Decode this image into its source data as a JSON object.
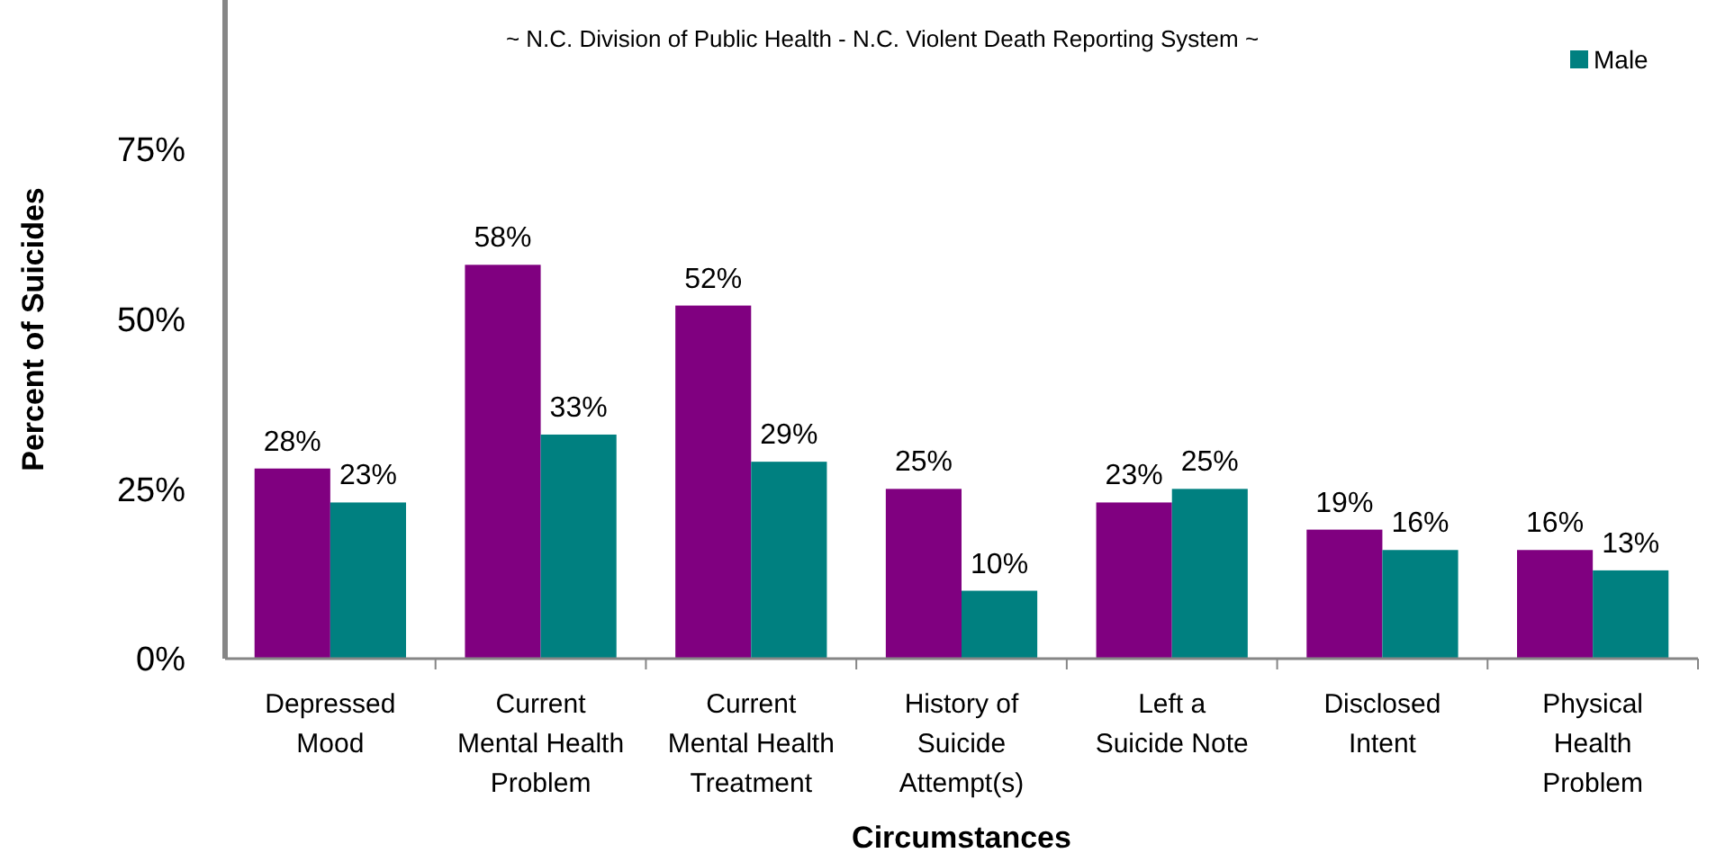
{
  "chart_data": {
    "type": "bar",
    "subtitle": "~ N.C. Division of Public Health - N.C. Violent Death Reporting System ~",
    "xlabel": "Circumstances",
    "ylabel": "Percent of Suicides",
    "categories": [
      "Depressed Mood",
      "Current Mental Health Problem",
      "Current Mental Health Treatment",
      "History of Suicide Attempt(s)",
      "Left a Suicide Note",
      "Disclosed Intent",
      "Physical Health Problem"
    ],
    "series": [
      {
        "color": "#800080",
        "values": [
          28,
          58,
          52,
          25,
          23,
          19,
          16
        ],
        "value_labels": [
          "28%",
          "58%",
          "52%",
          "25%",
          "23%",
          "19%",
          "16%"
        ]
      },
      {
        "name": "Male",
        "color": "#008080",
        "values": [
          23,
          33,
          29,
          10,
          25,
          16,
          13
        ],
        "value_labels": [
          "23%",
          "33%",
          "29%",
          "10%",
          "25%",
          "16%",
          "13%"
        ]
      }
    ],
    "ylim": [
      0,
      97
    ],
    "yticks": [
      {
        "value": 0,
        "label": "0%"
      },
      {
        "value": 25,
        "label": "25%"
      },
      {
        "value": 50,
        "label": "50%"
      },
      {
        "value": 75,
        "label": "75%"
      }
    ],
    "grid": false,
    "legend": "top right"
  }
}
